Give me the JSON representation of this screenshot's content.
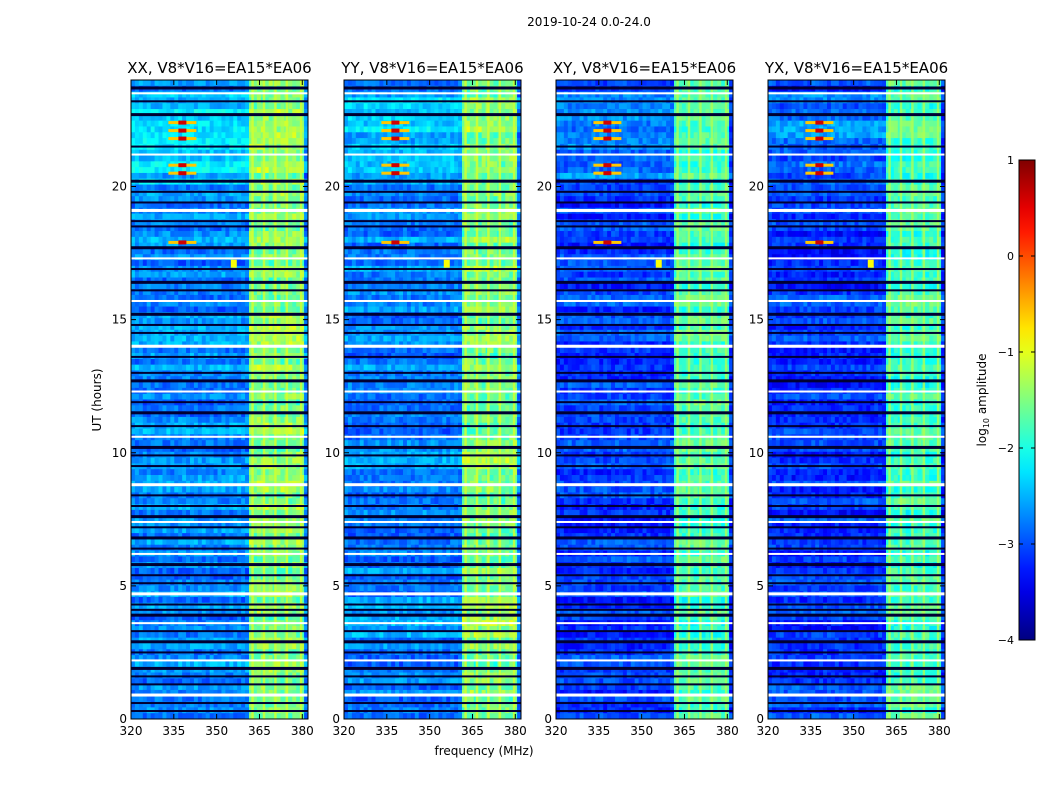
{
  "chart_data": {
    "type": "heatmap",
    "suptitle": "2019-10-24 0.0-24.0",
    "xlabel": "frequency (MHz)",
    "ylabel": "UT (hours)",
    "xlim": [
      320,
      382
    ],
    "ylim": [
      0,
      24
    ],
    "x_ticks": [
      320,
      335,
      350,
      365,
      380
    ],
    "y_ticks": [
      0,
      5,
      10,
      15,
      20
    ],
    "panels": [
      {
        "title": "XX, V8*V16=EA15*EA06",
        "pol": "XX"
      },
      {
        "title": "YY, V8*V16=EA15*EA06",
        "pol": "YY"
      },
      {
        "title": "XY, V8*V16=EA15*EA06",
        "pol": "XY"
      },
      {
        "title": "YX, V8*V16=EA15*EA06",
        "pol": "YX"
      }
    ],
    "colorbar": {
      "label": "log10 amplitude",
      "label_main": "log",
      "label_sub": "10",
      "label_rest": " amplitude",
      "range": [
        -4,
        1
      ],
      "ticks": [
        1,
        0,
        -1,
        -2,
        -3,
        -4
      ],
      "colormap": "jet"
    },
    "features": {
      "rfi_band_mhz": [
        362,
        380
      ],
      "rfi_lines_mhz": [
        362.5,
        366.5,
        370.5,
        374.5,
        379.5
      ],
      "spike_line_mhz": 338,
      "spike_times_ut": [
        21.8,
        22.1,
        22.4,
        20.5,
        20.8,
        17.9
      ],
      "burst_freq_mhz": 356,
      "burst_time_ut": 17.1,
      "flagged_rows_ut": [
        23.7,
        23.5,
        23.2,
        22.7,
        21.5,
        21.2,
        20.2,
        19.8,
        19.4,
        19.1,
        18.7,
        18.5,
        17.7,
        17.3,
        16.9,
        16.4,
        16.1,
        15.7,
        15.2,
        14.8,
        14.5,
        14.0,
        13.6,
        13.0,
        12.7,
        12.3,
        11.9,
        11.5,
        11.0,
        10.6,
        10.2,
        9.9,
        9.5,
        8.8,
        8.4,
        8.0,
        7.6,
        7.4,
        7.2,
        6.8,
        6.4,
        6.2,
        5.8,
        5.4,
        5.1,
        4.7,
        4.3,
        4.1,
        3.9,
        3.6,
        3.3,
        2.9,
        2.5,
        2.2,
        1.9,
        1.6,
        1.3,
        0.9,
        0.6,
        0.3
      ]
    }
  }
}
